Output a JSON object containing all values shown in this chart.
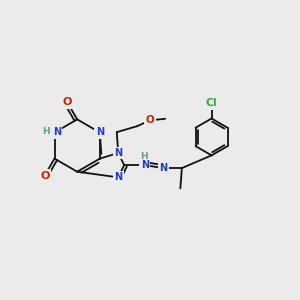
{
  "bg": "#ebebeb",
  "bc": "#111111",
  "nc": "#1a3dcc",
  "oc": "#cc2200",
  "clc": "#33aa33",
  "hc": "#6a9a8a",
  "fs": 7.0,
  "lw": 1.3,
  "xlim": [
    0,
    10
  ],
  "ylim": [
    0,
    10
  ],
  "figsize": [
    3.0,
    3.0
  ],
  "dpi": 100
}
